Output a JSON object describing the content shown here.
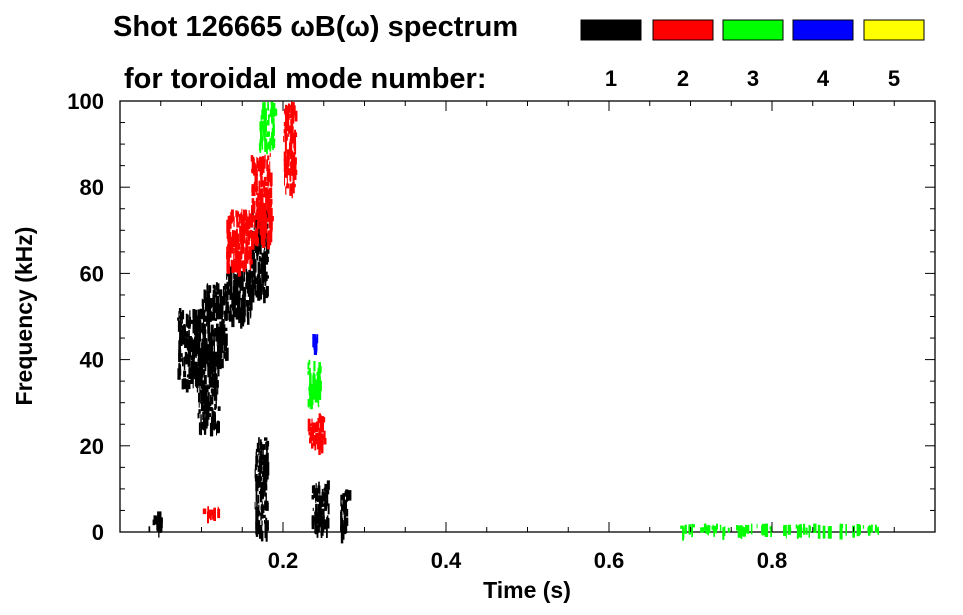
{
  "chart_data": {
    "type": "heatmap",
    "title_line1": "Shot 126665 ωB(ω) spectrum",
    "title_line2": "for toroidal mode number:",
    "xlabel": "Time (s)",
    "ylabel": "Frequency (kHz)",
    "xlim": [
      0.0,
      1.0
    ],
    "ylim": [
      0,
      100
    ],
    "x_ticks": [
      0.2,
      0.4,
      0.6,
      0.8
    ],
    "x_tick_labels": [
      "0.2",
      "0.4",
      "0.6",
      "0.8"
    ],
    "y_ticks": [
      0,
      20,
      40,
      60,
      80,
      100
    ],
    "y_tick_labels": [
      "0",
      "20",
      "40",
      "60",
      "80",
      "100"
    ],
    "legend_position": "top-right",
    "series": [
      {
        "name": "1",
        "color": "#000000",
        "regions": [
          {
            "t": [
              0.035,
              0.05
            ],
            "f": [
              1,
              5
            ]
          },
          {
            "t": [
              0.07,
              0.1
            ],
            "f": [
              35,
              52
            ]
          },
          {
            "t": [
              0.1,
              0.13
            ],
            "f": [
              40,
              58
            ]
          },
          {
            "t": [
              0.13,
              0.16
            ],
            "f": [
              50,
              62
            ]
          },
          {
            "t": [
              0.16,
              0.18
            ],
            "f": [
              55,
              75
            ]
          },
          {
            "t": [
              0.095,
              0.12
            ],
            "f": [
              25,
              42
            ]
          },
          {
            "t": [
              0.165,
              0.18
            ],
            "f": [
              0,
              22
            ]
          },
          {
            "t": [
              0.235,
              0.255
            ],
            "f": [
              1,
              12
            ]
          },
          {
            "t": [
              0.27,
              0.28
            ],
            "f": [
              0,
              10
            ]
          }
        ]
      },
      {
        "name": "2",
        "color": "#ff0000",
        "regions": [
          {
            "t": [
              0.13,
              0.16
            ],
            "f": [
              62,
              75
            ]
          },
          {
            "t": [
              0.16,
              0.185
            ],
            "f": [
              68,
              88
            ]
          },
          {
            "t": [
              0.2,
              0.215
            ],
            "f": [
              80,
              100
            ]
          },
          {
            "t": [
              0.23,
              0.25
            ],
            "f": [
              20,
              28
            ]
          },
          {
            "t": [
              0.1,
              0.12
            ],
            "f": [
              4,
              6
            ]
          }
        ]
      },
      {
        "name": "3",
        "color": "#00ff00",
        "regions": [
          {
            "t": [
              0.17,
              0.19
            ],
            "f": [
              90,
              100
            ]
          },
          {
            "t": [
              0.23,
              0.245
            ],
            "f": [
              30,
              40
            ]
          },
          {
            "t": [
              0.68,
              0.93
            ],
            "f": [
              1,
              2
            ]
          }
        ]
      },
      {
        "name": "4",
        "color": "#0000ff",
        "regions": [
          {
            "t": [
              0.235,
              0.242
            ],
            "f": [
              43,
              46
            ]
          }
        ]
      },
      {
        "name": "5",
        "color": "#ffff00",
        "regions": []
      }
    ]
  }
}
